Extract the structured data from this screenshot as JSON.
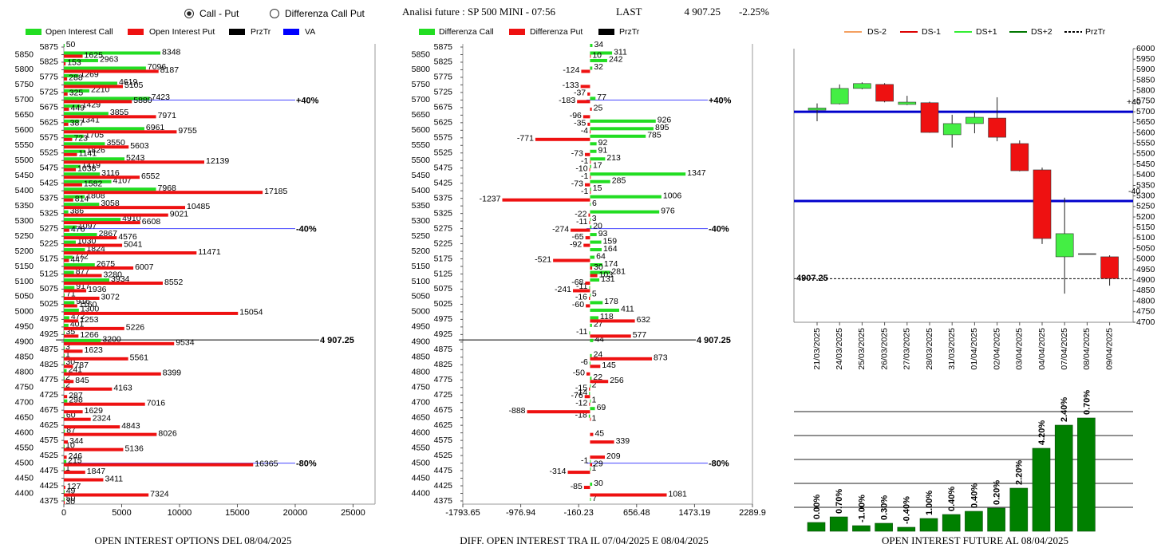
{
  "header": {
    "options": [
      "Call - Put",
      "Differenza Call Put"
    ],
    "title": "Analisi future : SP 500 MINI - 07:56",
    "last_label": "LAST",
    "last": "4 907.25",
    "change": "-2.25%"
  },
  "chart_data": [
    {
      "type": "hbar",
      "title": "OPEN INTEREST OPTIONS DEL 08/04/2025",
      "categories": [
        5875,
        5850,
        5825,
        5800,
        5775,
        5750,
        5725,
        5700,
        5675,
        5650,
        5625,
        5600,
        5575,
        5550,
        5525,
        5500,
        5475,
        5450,
        5425,
        5400,
        5375,
        5350,
        5325,
        5300,
        5275,
        5250,
        5225,
        5200,
        5175,
        5150,
        5125,
        5100,
        5075,
        5050,
        5025,
        5000,
        4975,
        4950,
        4925,
        4900,
        4875,
        4850,
        4825,
        4800,
        4775,
        4750,
        4725,
        4700,
        4675,
        4650,
        4625,
        4600,
        4575,
        4550,
        4525,
        4500,
        4475,
        4450,
        4425,
        4400,
        4375
      ],
      "series": [
        {
          "name": "Open Interest Call",
          "color": "#22dd22",
          "values": [
            50,
            8348,
            2963,
            7096,
            1269,
            4619,
            2210,
            7423,
            1429,
            3855,
            1341,
            6961,
            1705,
            3550,
            1826,
            5243,
            1419,
            3116,
            4107,
            7968,
            1808,
            3058,
            386,
            4910,
            1097,
            2867,
            1030,
            1824,
            772,
            2675,
            877,
            3934,
            917,
            71,
            916,
            1300,
            472,
            401,
            35,
            3200,
            3,
            1,
            30,
            241,
            2,
            2,
            null,
            298,
            null,
            60,
            null,
            87,
            null,
            10,
            null,
            215,
            1,
            null,
            null,
            49,
            50
          ]
        },
        {
          "name": "Open Interest Put",
          "color": "#ee1111",
          "values": [
            null,
            1625,
            153,
            8187,
            288,
            5105,
            325,
            5880,
            449,
            7971,
            387,
            9755,
            723,
            5603,
            1141,
            12139,
            1038,
            6552,
            1582,
            17185,
            814,
            10485,
            9021,
            6608,
            476,
            4576,
            5041,
            11471,
            447,
            6007,
            3280,
            8552,
            1936,
            3072,
            1160,
            15054,
            1253,
            5226,
            1266,
            9534,
            1623,
            5561,
            787,
            8399,
            845,
            4163,
            287,
            7016,
            1629,
            2324,
            4843,
            8026,
            344,
            5136,
            246,
            16365,
            1847,
            3411,
            127,
            7324,
            30
          ]
        }
      ],
      "legend_extra": [
        {
          "name": "PrzTr",
          "color": "#000000"
        },
        {
          "name": "VA",
          "color": "#0000ff"
        }
      ],
      "ref_lines": [
        {
          "value": 5700,
          "label": "+40%",
          "color": "#4444ff"
        },
        {
          "value": 5275,
          "label": "-40%",
          "color": "#4444ff"
        },
        {
          "value": 4907.25,
          "label": "4 907.25",
          "color": "#000000"
        },
        {
          "value": 4500,
          "label": "-80%",
          "color": "#4444ff"
        }
      ],
      "xlim": [
        0,
        26900
      ],
      "xticks": [
        0,
        5000,
        10000,
        15000,
        20000,
        25000
      ]
    },
    {
      "type": "hbar",
      "title": "DIFF. OPEN INTEREST TRA IL 07/04/2025 E 08/04/2025",
      "categories": [
        5875,
        5850,
        5825,
        5800,
        5775,
        5750,
        5725,
        5700,
        5675,
        5650,
        5625,
        5600,
        5575,
        5550,
        5525,
        5500,
        5475,
        5450,
        5425,
        5400,
        5375,
        5350,
        5325,
        5300,
        5275,
        5250,
        5225,
        5200,
        5175,
        5150,
        5125,
        5100,
        5075,
        5050,
        5025,
        5000,
        4975,
        4950,
        4925,
        4900,
        4875,
        4850,
        4825,
        4800,
        4775,
        4750,
        4725,
        4700,
        4675,
        4650,
        4625,
        4600,
        4575,
        4550,
        4525,
        4500,
        4475,
        4450,
        4425,
        4400,
        4375
      ],
      "series": [
        {
          "name": "Differenza Call",
          "color": "#22dd22",
          "values": [
            34,
            311,
            242,
            32,
            null,
            null,
            null,
            77,
            null,
            null,
            926,
            895,
            785,
            92,
            91,
            213,
            17,
            1347,
            285,
            15,
            1006,
            6,
            976,
            3,
            20,
            93,
            159,
            164,
            64,
            174,
            281,
            131,
            -11,
            5,
            178,
            411,
            118,
            27,
            -11,
            44,
            null,
            24,
            -6,
            null,
            22,
            2,
            -14,
            1,
            69,
            -18,
            null,
            null,
            null,
            null,
            null,
            -1,
            1,
            null,
            30,
            null,
            7
          ]
        },
        {
          "name": "Differenza Put",
          "color": "#ee1111",
          "values": [
            null,
            10,
            null,
            -124,
            null,
            -133,
            -37,
            -183,
            25,
            -96,
            -35,
            -4,
            -771,
            null,
            -73,
            -1,
            -10,
            -1,
            -73,
            -1,
            -1237,
            null,
            -22,
            -11,
            -274,
            -65,
            -92,
            null,
            -521,
            30,
            103,
            -68,
            -241,
            -16,
            -60,
            null,
            632,
            null,
            577,
            null,
            null,
            873,
            145,
            -50,
            256,
            -15,
            -76,
            -12,
            -888,
            1,
            null,
            45,
            339,
            null,
            209,
            29,
            -314,
            null,
            -85,
            1081,
            null
          ]
        }
      ],
      "legend_extra": [
        {
          "name": "PrzTr",
          "color": "#000000"
        }
      ],
      "ref_lines": [
        {
          "value": 5700,
          "label": "+40%",
          "color": "#4444ff"
        },
        {
          "value": 5275,
          "label": "-40%",
          "color": "#4444ff"
        },
        {
          "value": 4907.25,
          "label": "4 907.25",
          "color": "#000000"
        },
        {
          "value": 4500,
          "label": "-80%",
          "color": "#4444ff"
        }
      ],
      "xlim": [
        -1793.65,
        2289.9
      ],
      "xticks": [
        -1793.65,
        -976.94,
        -160.23,
        656.48,
        1473.19,
        2289.9
      ]
    },
    {
      "type": "candlestick",
      "x": [
        "21/03/2025",
        "24/03/2025",
        "25/03/2025",
        "26/03/2025",
        "27/03/2025",
        "28/03/2025",
        "31/03/2025",
        "01/04/2025",
        "02/04/2025",
        "03/04/2025",
        "04/04/2025",
        "07/04/2025",
        "08/04/2025",
        "09/04/2025"
      ],
      "open": [
        5708,
        5738,
        5811,
        5830,
        5735,
        5743,
        5591,
        5644,
        5670,
        5549,
        5424,
        5011,
        5026,
        5011
      ],
      "high": [
        5740,
        5830,
        5840,
        5836,
        5776,
        5748,
        5686,
        5700,
        5769,
        5564,
        5435,
        5292,
        5026,
        5018
      ],
      "low": [
        5655,
        5735,
        5807,
        5745,
        5732,
        5600,
        5530,
        5598,
        5560,
        5417,
        5072,
        4836,
        5026,
        4874
      ],
      "close": [
        5718,
        5811,
        5834,
        5750,
        5746,
        5602,
        5644,
        5674,
        5579,
        5420,
        5098,
        5121,
        5026,
        4908
      ],
      "up_color": "#44ee44",
      "down_color": "#ee1111",
      "legend": [
        {
          "name": "DS-2",
          "color": "#f4a060"
        },
        {
          "name": "DS-1",
          "color": "#dd0000"
        },
        {
          "name": "DS+1",
          "color": "#33ee33"
        },
        {
          "name": "DS+2",
          "color": "#007700"
        },
        {
          "name": "PrzTr",
          "color": "#000000"
        }
      ],
      "ref_lines": [
        {
          "value": 5700,
          "label": "+40",
          "color": "#0000cc"
        },
        {
          "value": 5276,
          "label": "-40",
          "color": "#0000cc"
        },
        {
          "value": 4907.25,
          "label": "4907.25",
          "color": "#000000"
        }
      ],
      "ylim": [
        4700,
        6000
      ],
      "yticks": [
        4700,
        4750,
        4800,
        4850,
        4900,
        4950,
        5000,
        5050,
        5100,
        5150,
        5200,
        5250,
        5300,
        5350,
        5400,
        5450,
        5500,
        5550,
        5600,
        5650,
        5700,
        5750,
        5800,
        5850,
        5900,
        5950,
        6000
      ]
    },
    {
      "type": "bar",
      "title": "OPEN INTEREST FUTURE AL 08/04/2025",
      "values": [
        11,
        18,
        7,
        10,
        5,
        16,
        21,
        25,
        29,
        54,
        104,
        133,
        142
      ],
      "change_labels": [
        "0.00%",
        "0.70%",
        "-1.00%",
        "0.30%",
        "-0.40%",
        "1.00%",
        "0.40%",
        "0.40%",
        "0.20%",
        "2.20%",
        "4.20%",
        "2.40%",
        "0.70%"
      ],
      "color": "#008000",
      "ylim": [
        0,
        150
      ],
      "yticks": [
        30,
        60,
        90,
        120,
        150
      ],
      "grid": true
    }
  ]
}
